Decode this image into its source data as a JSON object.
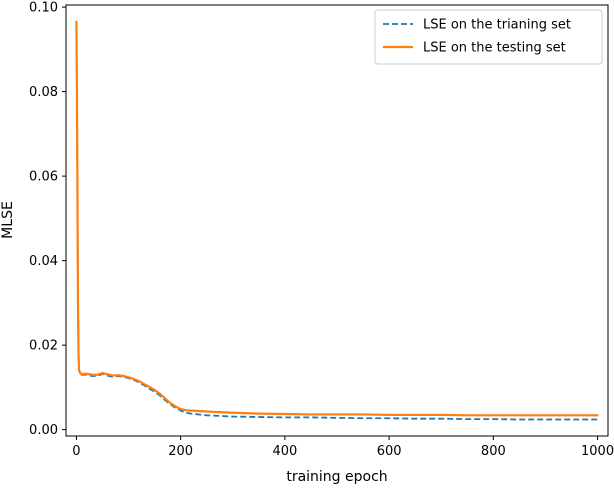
{
  "chart_data": {
    "type": "line",
    "title": "",
    "xlabel": "training epoch",
    "ylabel": "MLSE",
    "xlim": [
      -20,
      1020
    ],
    "ylim": [
      -0.0015,
      0.1005
    ],
    "xticks": [
      0,
      200,
      400,
      600,
      800,
      1000
    ],
    "xtick_labels": [
      "0",
      "200",
      "400",
      "600",
      "800",
      "1000"
    ],
    "yticks": [
      0.0,
      0.02,
      0.04,
      0.06,
      0.08,
      0.1
    ],
    "ytick_labels": [
      "0.00",
      "0.02",
      "0.04",
      "0.06",
      "0.08",
      "0.10"
    ],
    "grid": false,
    "legend_position": "upper right",
    "series": [
      {
        "name": "LSE on the trianing set",
        "color": "#1f77b4",
        "line_style": "dashed",
        "x": [
          0,
          1,
          2,
          3,
          4,
          5,
          7,
          10,
          20,
          30,
          40,
          50,
          60,
          70,
          80,
          90,
          100,
          110,
          120,
          130,
          140,
          150,
          160,
          170,
          180,
          190,
          200,
          210,
          220,
          250,
          300,
          350,
          400,
          450,
          500,
          550,
          600,
          650,
          700,
          750,
          800,
          850,
          900,
          950,
          1000
        ],
        "y": [
          0.096,
          0.08,
          0.055,
          0.03,
          0.018,
          0.014,
          0.0132,
          0.013,
          0.013,
          0.0127,
          0.0127,
          0.0132,
          0.0128,
          0.0125,
          0.0127,
          0.0125,
          0.0122,
          0.0118,
          0.0112,
          0.0105,
          0.0097,
          0.009,
          0.0081,
          0.007,
          0.006,
          0.0052,
          0.0045,
          0.004,
          0.0038,
          0.0034,
          0.0031,
          0.003,
          0.0029,
          0.0029,
          0.0028,
          0.0027,
          0.0027,
          0.0026,
          0.0026,
          0.0025,
          0.0025,
          0.0024,
          0.0024,
          0.0024,
          0.0024
        ]
      },
      {
        "name": "LSE on the testing set",
        "color": "#ff7f0e",
        "line_style": "solid",
        "x": [
          0,
          1,
          2,
          3,
          4,
          5,
          7,
          10,
          20,
          30,
          40,
          50,
          60,
          70,
          80,
          90,
          100,
          110,
          120,
          130,
          140,
          150,
          160,
          170,
          180,
          190,
          200,
          210,
          220,
          250,
          300,
          350,
          400,
          450,
          500,
          550,
          600,
          650,
          700,
          750,
          800,
          850,
          900,
          950,
          1000
        ],
        "y": [
          0.0965,
          0.08,
          0.055,
          0.03,
          0.018,
          0.0142,
          0.0134,
          0.0132,
          0.0132,
          0.013,
          0.013,
          0.0134,
          0.0131,
          0.0128,
          0.0129,
          0.0127,
          0.0124,
          0.012,
          0.0115,
          0.0108,
          0.0101,
          0.0094,
          0.0085,
          0.0074,
          0.0063,
          0.0055,
          0.0049,
          0.0046,
          0.0045,
          0.0043,
          0.004,
          0.0038,
          0.0037,
          0.0036,
          0.0036,
          0.0036,
          0.0035,
          0.0035,
          0.0035,
          0.0034,
          0.0034,
          0.0034,
          0.0034,
          0.0034,
          0.0034
        ]
      }
    ]
  }
}
